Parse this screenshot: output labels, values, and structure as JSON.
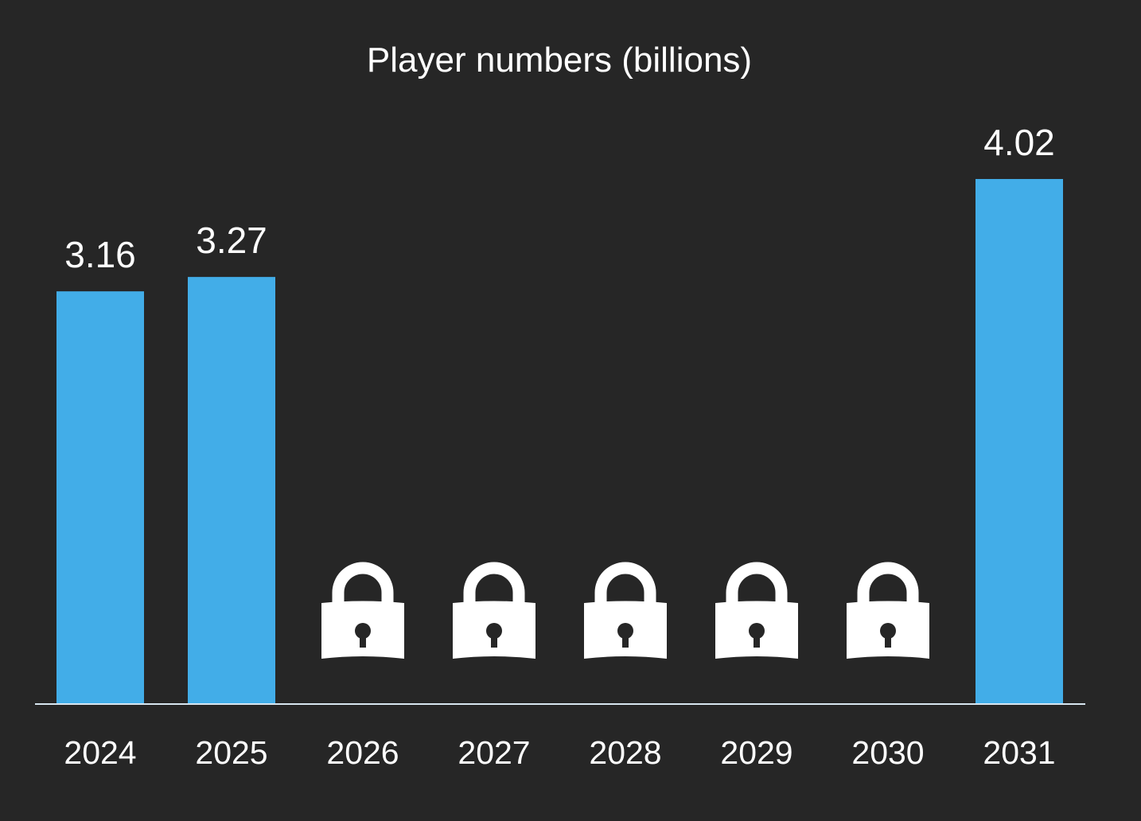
{
  "chart_data": {
    "type": "bar",
    "title": "Player numbers (billions)",
    "xlabel": "",
    "ylabel": "",
    "categories": [
      "2024",
      "2025",
      "2026",
      "2027",
      "2028",
      "2029",
      "2030",
      "2031"
    ],
    "values": [
      3.16,
      3.27,
      null,
      null,
      null,
      null,
      null,
      4.02
    ],
    "value_labels": [
      "3.16",
      "3.27",
      "",
      "",
      "",
      "",
      "",
      "4.02"
    ],
    "locked": [
      false,
      false,
      true,
      true,
      true,
      true,
      true,
      false
    ],
    "locked_icon": "padlock-icon",
    "ylim": [
      0,
      4.02
    ],
    "grid": false,
    "legend": "none",
    "colors": {
      "background": "#262626",
      "bar": "#42ade8",
      "text": "#ffffff",
      "axis": "#d8e6f0",
      "lock": "#ffffff"
    }
  }
}
